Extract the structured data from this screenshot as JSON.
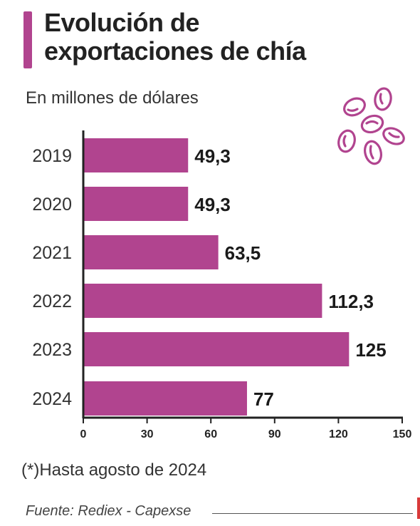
{
  "title": {
    "line1": "Evolución de",
    "line2": "exportaciones de chía"
  },
  "subtitle": "En millones de dólares",
  "note": "(*)Hasta agosto de 2024",
  "source": "Fuente: Rediex - Capexse",
  "colors": {
    "bar": "#b1448f",
    "accent": "#b1448f",
    "text": "#1a1a1a"
  },
  "icons": {
    "decoration": "chia-seeds-icon"
  },
  "chart_data": {
    "type": "bar",
    "orientation": "horizontal",
    "categories": [
      "2019",
      "2020",
      "2021",
      "2022",
      "2023",
      "2024"
    ],
    "values": [
      49.3,
      49.3,
      63.5,
      112.3,
      125,
      77
    ],
    "value_labels": [
      "49,3",
      "49,3",
      "63,5",
      "112,3",
      "125",
      "77"
    ],
    "xlim": [
      0,
      150
    ],
    "xticks": [
      0,
      30,
      60,
      90,
      120,
      150
    ],
    "grid": false
  }
}
